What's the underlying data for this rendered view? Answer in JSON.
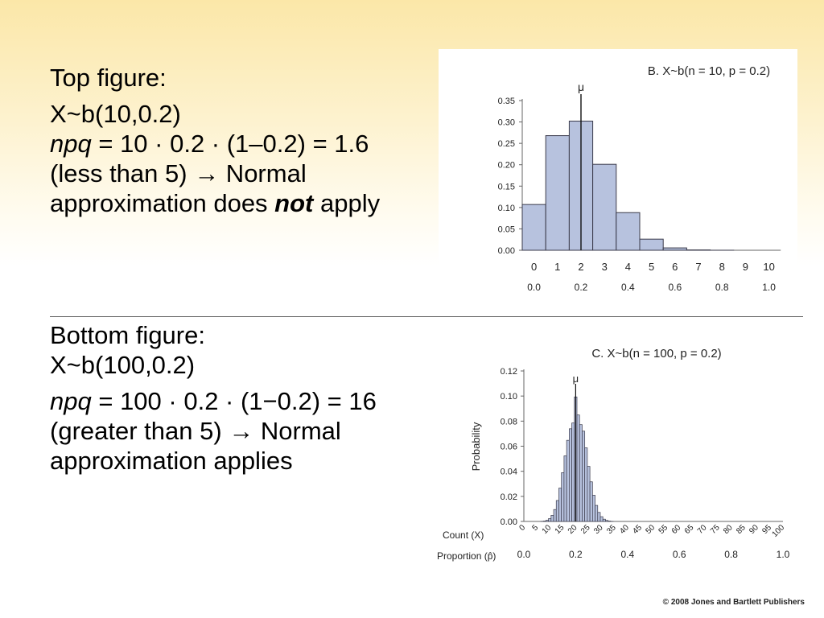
{
  "top_text": {
    "heading": "Top figure:",
    "line1": "X~b(10,0.2)",
    "npq_var": "npq",
    "npq_rest": " = 10 · 0.2 · (1–0.2) = 1.6 (less than 5) → Normal approximation does ",
    "emph": "not",
    "tail": " apply"
  },
  "bottom_text": {
    "heading": "Bottom figure:",
    "line1": "X~b(100,0.2)",
    "npq_var": "npq",
    "npq_rest": " = 100 · 0.2 · (1−0.2) = 16 (greater than 5) → Normal approximation applies"
  },
  "copyright": "© 2008 Jones and Bartlett Publishers",
  "colors": {
    "bar_fill": "#b7c2de",
    "bar_stroke": "#3a3a4a",
    "axis": "#666666"
  },
  "chart_data": [
    {
      "type": "bar",
      "title": "B. X~b(n = 10, p = 0.2)",
      "mu_label": "μ",
      "mu": 2,
      "x_label": "",
      "y_label": "",
      "categories": [
        0,
        1,
        2,
        3,
        4,
        5,
        6,
        7,
        8,
        9,
        10
      ],
      "values": [
        0.107,
        0.268,
        0.302,
        0.201,
        0.088,
        0.026,
        0.0055,
        0.0008,
        0.0001,
        0.0,
        0.0
      ],
      "ylim": [
        0,
        0.35
      ],
      "yticks": [
        "0.00",
        "0.05",
        "0.10",
        "0.15",
        "0.20",
        "0.25",
        "0.30",
        "0.35"
      ],
      "count_ticks": [
        "0",
        "1",
        "2",
        "3",
        "4",
        "5",
        "6",
        "7",
        "8",
        "9",
        "10"
      ],
      "proportion_ticks": [
        "0.0",
        "0.2",
        "0.4",
        "0.6",
        "0.8",
        "1.0"
      ],
      "proportion_positions": [
        0,
        2,
        4,
        6,
        8,
        10
      ]
    },
    {
      "type": "bar",
      "title": "C. X~b(n = 100, p = 0.2)",
      "mu_label": "μ",
      "mu": 20,
      "y_label": "Probability",
      "count_label": "Count (X)",
      "proportion_label": "Proportion (p̂)",
      "categories": [
        0,
        1,
        2,
        3,
        4,
        5,
        6,
        7,
        8,
        9,
        10,
        11,
        12,
        13,
        14,
        15,
        16,
        17,
        18,
        19,
        20,
        21,
        22,
        23,
        24,
        25,
        26,
        27,
        28,
        29,
        30,
        31,
        32,
        33,
        34,
        35,
        36,
        37,
        38,
        39,
        40
      ],
      "values": [
        0.0,
        0.0,
        0.0,
        0.0,
        0.0,
        0.0,
        0.0,
        0.0001,
        0.0003,
        0.0009,
        0.0023,
        0.0049,
        0.0095,
        0.0167,
        0.0266,
        0.0389,
        0.0523,
        0.0647,
        0.0739,
        0.0785,
        0.0993,
        0.0849,
        0.0772,
        0.072,
        0.0587,
        0.0439,
        0.0316,
        0.0209,
        0.0128,
        0.0072,
        0.0038,
        0.0018,
        0.0008,
        0.0003,
        0.0001,
        0.0,
        0.0,
        0.0,
        0.0,
        0.0,
        0.0
      ],
      "xlim": [
        0,
        100
      ],
      "ylim": [
        0,
        0.12
      ],
      "yticks": [
        "0.00",
        "0.02",
        "0.04",
        "0.06",
        "0.08",
        "0.10",
        "0.12"
      ],
      "count_ticks": [
        "0",
        "5",
        "10",
        "15",
        "20",
        "25",
        "30",
        "35",
        "40",
        "45",
        "50",
        "55",
        "60",
        "65",
        "70",
        "75",
        "80",
        "85",
        "90",
        "95",
        "100"
      ],
      "proportion_ticks": [
        "0.0",
        "0.2",
        "0.4",
        "0.6",
        "0.8",
        "1.0"
      ],
      "proportion_positions": [
        0,
        20,
        40,
        60,
        80,
        100
      ]
    }
  ]
}
